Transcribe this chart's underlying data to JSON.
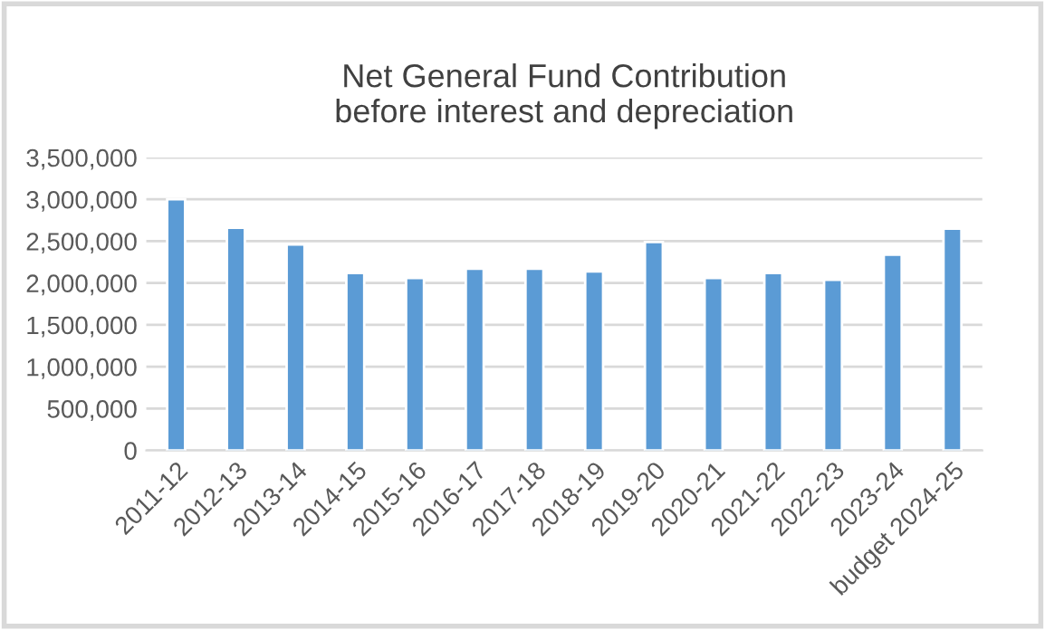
{
  "chart_data": {
    "type": "bar",
    "title": "Net General Fund Contribution\nbefore interest and depreciation",
    "categories": [
      "2011-12",
      "2012-13",
      "2013-14",
      "2014-15",
      "2015-16",
      "2016-17",
      "2017-18",
      "2018-19",
      "2019-20",
      "2020-21",
      "2021-22",
      "2022-23",
      "2023-24",
      "budget 2024-25"
    ],
    "values": [
      3000000,
      2660000,
      2460000,
      2120000,
      2060000,
      2170000,
      2170000,
      2140000,
      2490000,
      2060000,
      2120000,
      2040000,
      2340000,
      2650000
    ],
    "color": "#5b9bd5",
    "ylim": [
      0,
      3500000
    ],
    "yticks": [
      {
        "value": 0,
        "label": "0"
      },
      {
        "value": 500000,
        "label": "500,000"
      },
      {
        "value": 1000000,
        "label": "1,000,000"
      },
      {
        "value": 1500000,
        "label": "1,500,000"
      },
      {
        "value": 2000000,
        "label": "2,000,000"
      },
      {
        "value": 2500000,
        "label": "2,500,000"
      },
      {
        "value": 3000000,
        "label": "3,000,000"
      },
      {
        "value": 3500000,
        "label": "3,500,000"
      }
    ],
    "grid": "y"
  }
}
